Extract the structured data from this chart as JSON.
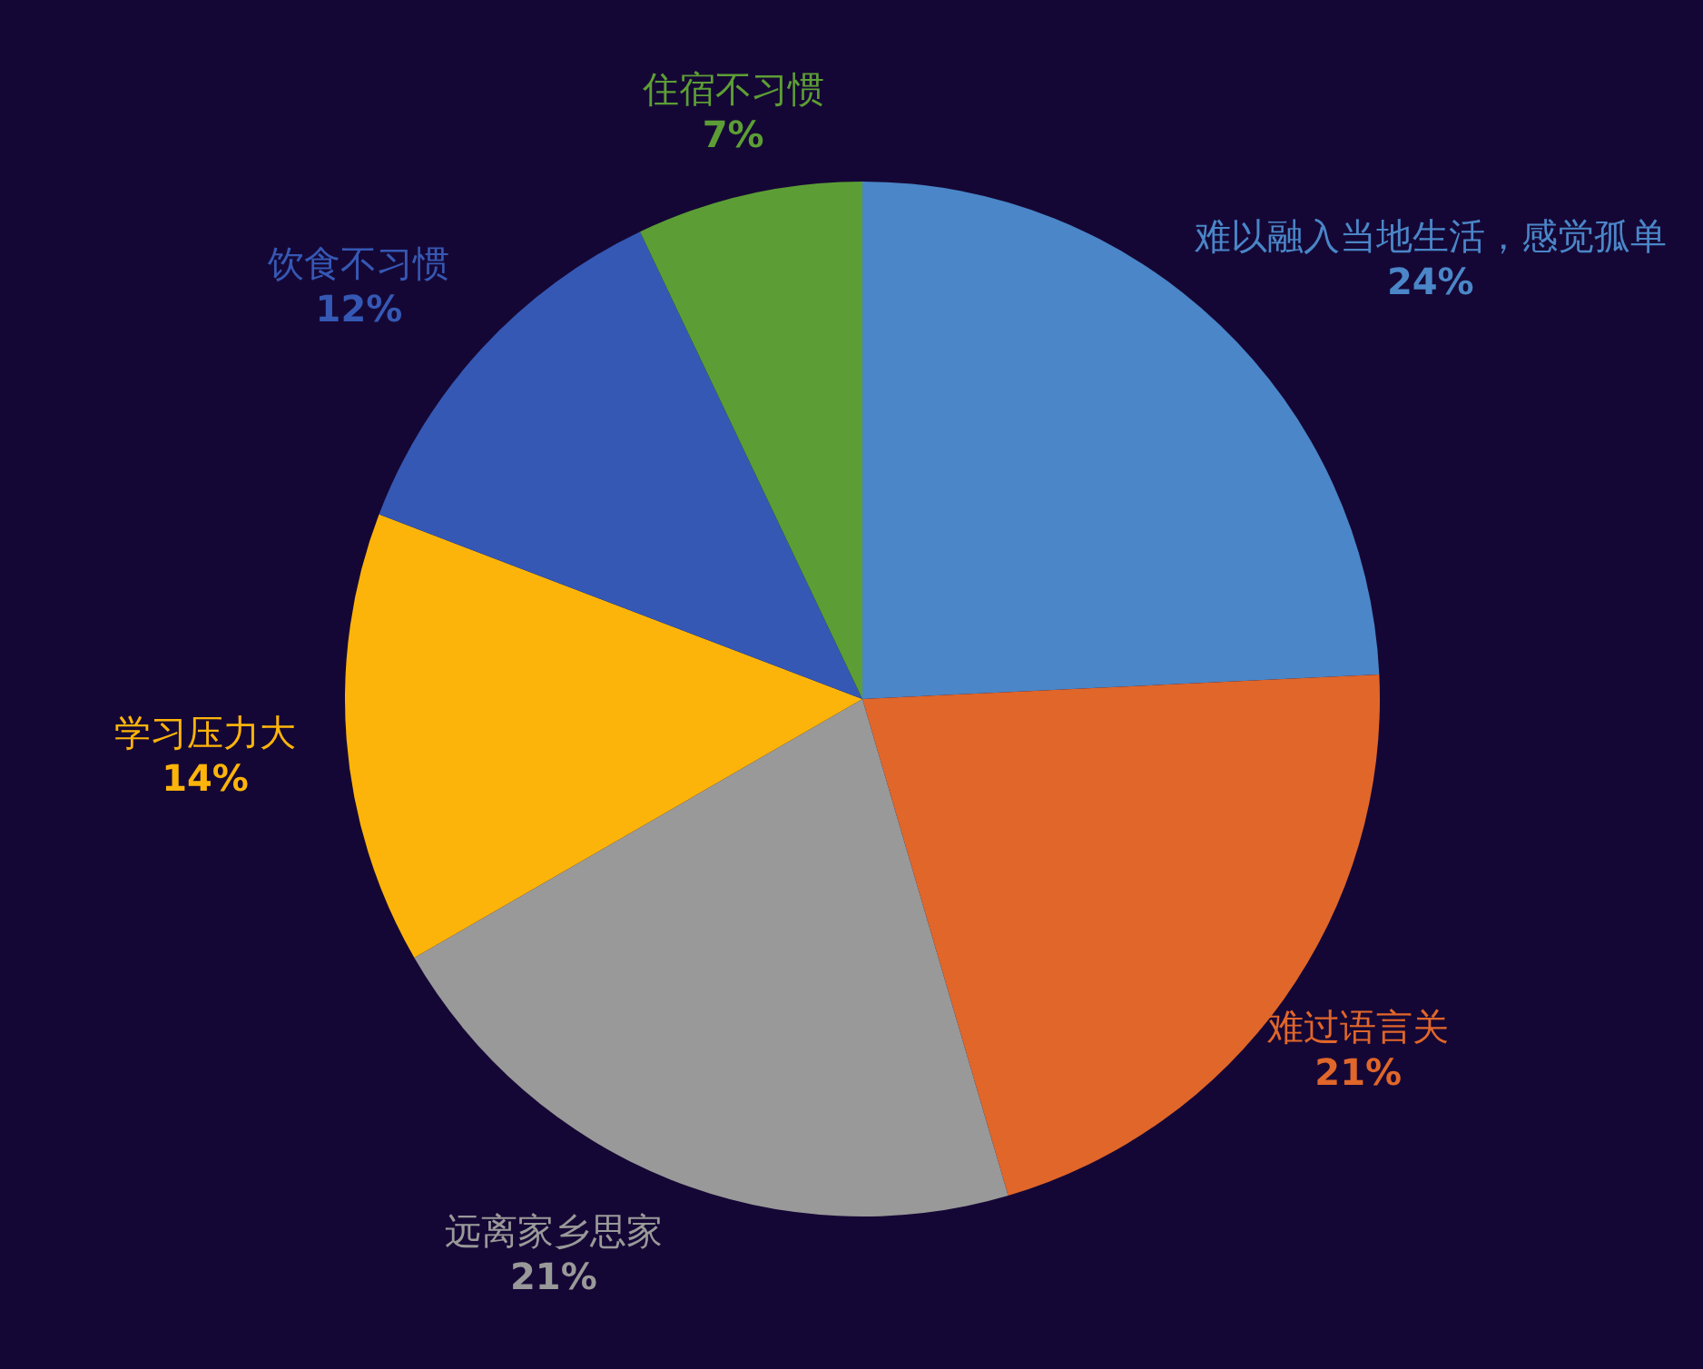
{
  "chart_data": {
    "type": "pie",
    "categories": [
      "难以融入当地生活，感觉孤单",
      "难过语言关",
      "远离家乡思家",
      "学习压力大",
      "饮食不习惯",
      "住宿不习惯"
    ],
    "values": [
      24,
      21,
      21,
      14,
      12,
      7
    ],
    "colors": [
      "#4a86c8",
      "#e0662a",
      "#999999",
      "#fdb40a",
      "#3558b4",
      "#5c9e35"
    ],
    "value_labels": [
      "24%",
      "21%",
      "21%",
      "14%",
      "12%",
      "7%"
    ]
  }
}
